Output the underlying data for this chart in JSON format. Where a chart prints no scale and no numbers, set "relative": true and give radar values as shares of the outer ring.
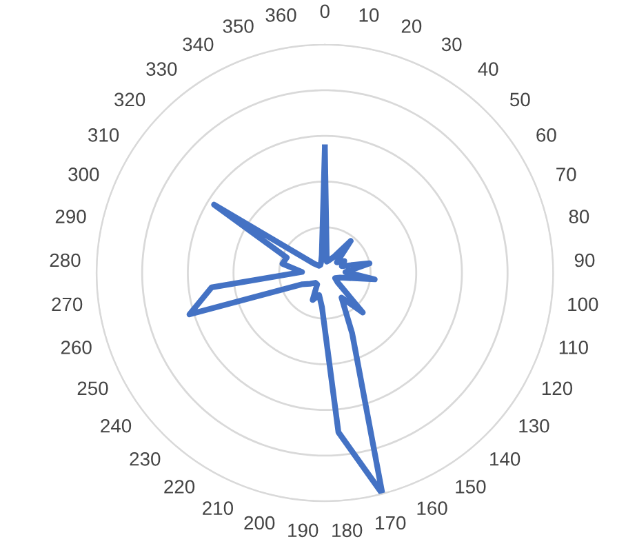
{
  "chart_data": {
    "type": "radar",
    "relative": true,
    "grid": true,
    "legend": false,
    "marker": "none",
    "line_style": "solid",
    "categories": [
      "0",
      "10",
      "20",
      "30",
      "40",
      "50",
      "60",
      "70",
      "80",
      "90",
      "100",
      "110",
      "120",
      "130",
      "140",
      "150",
      "160",
      "170",
      "180",
      "190",
      "200",
      "210",
      "220",
      "230",
      "240",
      "250",
      "260",
      "270",
      "280",
      "290",
      "300",
      "310",
      "320",
      "330",
      "340",
      "350",
      "360"
    ],
    "series": [
      {
        "color": "#4472c4",
        "values": [
          0.55,
          0.05,
          0.06,
          0.08,
          0.18,
          0.07,
          0.1,
          0.08,
          0.2,
          0.09,
          0.22,
          0.07,
          0.05,
          0.07,
          0.24,
          0.13,
          0.29,
          1.0,
          0.7,
          0.15,
          0.1,
          0.13,
          0.06,
          0.06,
          0.08,
          0.11,
          0.62,
          0.5,
          0.1,
          0.19,
          0.18,
          0.57,
          0.06,
          0.04,
          0.04,
          0.05,
          0.08
        ]
      }
    ]
  }
}
